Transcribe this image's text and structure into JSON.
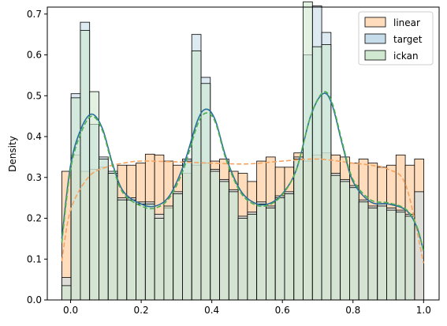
{
  "chart_data": {
    "type": "bar",
    "title": "",
    "xlabel": "",
    "ylabel": "Density",
    "xlim": [
      -0.066,
      1.044
    ],
    "ylim": [
      0,
      0.717
    ],
    "xticks": [
      0.0,
      0.2,
      0.4,
      0.6,
      0.8,
      1.0
    ],
    "xtick_labels": [
      "0.0",
      "0.2",
      "0.4",
      "0.6",
      "0.8",
      "1.0"
    ],
    "yticks": [
      0.0,
      0.1,
      0.2,
      0.3,
      0.4,
      0.5,
      0.6,
      0.7
    ],
    "ytick_labels": [
      "0.0",
      "0.1",
      "0.2",
      "0.3",
      "0.4",
      "0.5",
      "0.6",
      "0.7"
    ],
    "grid": false,
    "legend_position": "upper right",
    "bin_edges": [
      -0.025,
      0.0013,
      0.0276,
      0.0539,
      0.0802,
      0.1065,
      0.1328,
      0.1591,
      0.1854,
      0.2117,
      0.238,
      0.2643,
      0.2906,
      0.3169,
      0.3432,
      0.3695,
      0.3958,
      0.4221,
      0.4484,
      0.4747,
      0.501,
      0.5273,
      0.5536,
      0.5799,
      0.6062,
      0.6325,
      0.6588,
      0.6851,
      0.7114,
      0.7377,
      0.764,
      0.7903,
      0.8166,
      0.8429,
      0.8692,
      0.8955,
      0.9218,
      0.9481,
      0.9744,
      1.0007
    ],
    "series": [
      {
        "name": "linear",
        "color": "#ffdcbc",
        "kde_color": "#f4a460",
        "values": [
          0.315,
          0.355,
          0.315,
          0.32,
          0.325,
          0.31,
          0.33,
          0.33,
          0.335,
          0.357,
          0.355,
          0.34,
          0.33,
          0.31,
          0.33,
          0.335,
          0.34,
          0.345,
          0.315,
          0.31,
          0.29,
          0.34,
          0.35,
          0.325,
          0.325,
          0.36,
          0.34,
          0.355,
          0.36,
          0.355,
          0.35,
          0.335,
          0.345,
          0.335,
          0.325,
          0.33,
          0.355,
          0.33,
          0.345
        ],
        "kde": [
          [
            -0.025,
            0.095
          ],
          [
            0.0,
            0.22
          ],
          [
            0.05,
            0.3
          ],
          [
            0.1,
            0.325
          ],
          [
            0.15,
            0.335
          ],
          [
            0.2,
            0.34
          ],
          [
            0.3,
            0.338
          ],
          [
            0.4,
            0.335
          ],
          [
            0.5,
            0.333
          ],
          [
            0.6,
            0.34
          ],
          [
            0.7,
            0.345
          ],
          [
            0.8,
            0.335
          ],
          [
            0.85,
            0.33
          ],
          [
            0.9,
            0.32
          ],
          [
            0.95,
            0.28
          ],
          [
            1.0,
            0.09
          ]
        ]
      },
      {
        "name": "target",
        "color": "#c7dcea",
        "kde_color": "#2a6f9b",
        "values": [
          0.055,
          0.505,
          0.68,
          0.43,
          0.35,
          0.315,
          0.25,
          0.25,
          0.24,
          0.24,
          0.21,
          0.225,
          0.265,
          0.345,
          0.65,
          0.545,
          0.32,
          0.295,
          0.27,
          0.205,
          0.215,
          0.24,
          0.23,
          0.255,
          0.265,
          0.35,
          0.6,
          0.72,
          0.655,
          0.31,
          0.295,
          0.28,
          0.245,
          0.23,
          0.235,
          0.225,
          0.22,
          0.21,
          0.265
        ],
        "kde": [
          [
            -0.025,
            0.15
          ],
          [
            0.0,
            0.33
          ],
          [
            0.03,
            0.42
          ],
          [
            0.06,
            0.455
          ],
          [
            0.09,
            0.42
          ],
          [
            0.12,
            0.33
          ],
          [
            0.15,
            0.265
          ],
          [
            0.2,
            0.235
          ],
          [
            0.24,
            0.23
          ],
          [
            0.28,
            0.255
          ],
          [
            0.32,
            0.33
          ],
          [
            0.36,
            0.44
          ],
          [
            0.385,
            0.467
          ],
          [
            0.41,
            0.44
          ],
          [
            0.44,
            0.35
          ],
          [
            0.48,
            0.27
          ],
          [
            0.52,
            0.238
          ],
          [
            0.56,
            0.235
          ],
          [
            0.6,
            0.26
          ],
          [
            0.64,
            0.32
          ],
          [
            0.68,
            0.45
          ],
          [
            0.715,
            0.505
          ],
          [
            0.74,
            0.48
          ],
          [
            0.77,
            0.38
          ],
          [
            0.8,
            0.29
          ],
          [
            0.85,
            0.24
          ],
          [
            0.9,
            0.235
          ],
          [
            0.95,
            0.22
          ],
          [
            0.98,
            0.18
          ],
          [
            1.0,
            0.12
          ]
        ]
      },
      {
        "name": "ickan",
        "color": "#cfe8cf",
        "kde_color": "#4caf50",
        "values": [
          0.035,
          0.495,
          0.66,
          0.51,
          0.345,
          0.31,
          0.245,
          0.245,
          0.235,
          0.235,
          0.2,
          0.23,
          0.26,
          0.34,
          0.61,
          0.53,
          0.315,
          0.29,
          0.265,
          0.2,
          0.21,
          0.235,
          0.225,
          0.25,
          0.26,
          0.345,
          0.73,
          0.62,
          0.625,
          0.305,
          0.29,
          0.275,
          0.24,
          0.225,
          0.23,
          0.22,
          0.215,
          0.205,
          0.0
        ],
        "kde": [
          [
            -0.025,
            0.14
          ],
          [
            0.0,
            0.32
          ],
          [
            0.03,
            0.41
          ],
          [
            0.06,
            0.45
          ],
          [
            0.09,
            0.415
          ],
          [
            0.12,
            0.325
          ],
          [
            0.15,
            0.26
          ],
          [
            0.2,
            0.23
          ],
          [
            0.24,
            0.225
          ],
          [
            0.28,
            0.25
          ],
          [
            0.32,
            0.32
          ],
          [
            0.36,
            0.43
          ],
          [
            0.385,
            0.458
          ],
          [
            0.41,
            0.435
          ],
          [
            0.44,
            0.345
          ],
          [
            0.48,
            0.265
          ],
          [
            0.52,
            0.234
          ],
          [
            0.56,
            0.232
          ],
          [
            0.6,
            0.258
          ],
          [
            0.64,
            0.32
          ],
          [
            0.68,
            0.45
          ],
          [
            0.715,
            0.508
          ],
          [
            0.74,
            0.485
          ],
          [
            0.77,
            0.385
          ],
          [
            0.8,
            0.295
          ],
          [
            0.85,
            0.245
          ],
          [
            0.9,
            0.238
          ],
          [
            0.95,
            0.222
          ],
          [
            0.98,
            0.182
          ],
          [
            1.0,
            0.12
          ]
        ]
      }
    ]
  }
}
